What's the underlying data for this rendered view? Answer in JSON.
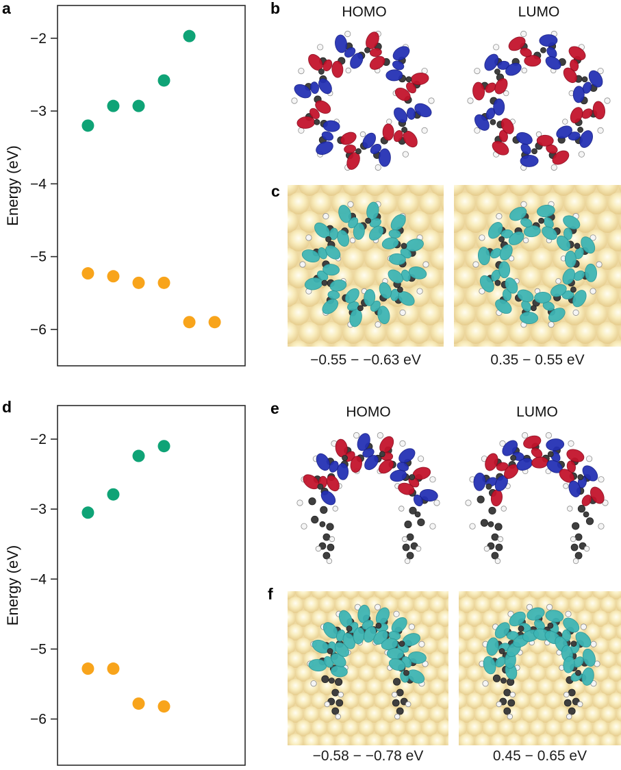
{
  "figure": {
    "panels": {
      "a": {
        "label": "a"
      },
      "b": {
        "label": "b",
        "homo_label": "HOMO",
        "lumo_label": "LUMO"
      },
      "c": {
        "label": "c",
        "homo_caption": "−0.55 − −0.63 eV",
        "lumo_caption": "0.35 − 0.55 eV"
      },
      "d": {
        "label": "d"
      },
      "e": {
        "label": "e",
        "homo_label": "HOMO",
        "lumo_label": "LUMO"
      },
      "f": {
        "label": "f",
        "homo_caption": "−0.58 − −0.78 eV",
        "lumo_caption": "0.45 − 0.65 eV"
      }
    }
  },
  "colors": {
    "point_green": "#0FA376",
    "point_orange": "#F8A41B",
    "orbital_red": "#C3132B",
    "orbital_red_stroke": "#8F0A1E",
    "orbital_blue": "#2430B4",
    "orbital_blue_stroke": "#161F8A",
    "orbital_cyan": "#3DB5B5",
    "orbital_cyan_stroke": "#2B9898",
    "gold_surface": "#EED9A2",
    "atom_carbon": "#3F3F3F",
    "atom_hydrogen": "#F5F5F5",
    "axis": "#2A2A2A",
    "text": "#111111"
  },
  "chart_data": [
    {
      "id": "a",
      "type": "scatter",
      "title": "",
      "xlabel": "",
      "ylabel": "Energy (eV)",
      "ylim": [
        -6.5,
        -1.55
      ],
      "xlim": [
        -0.2,
        7.2
      ],
      "yticks": [
        -2,
        -3,
        -4,
        -5,
        -6
      ],
      "grid": false,
      "legend": "none",
      "marker_radius": 9,
      "series": [
        {
          "name": "LUMO",
          "color_key": "point_green",
          "x": [
            1,
            2,
            3,
            4,
            5
          ],
          "y": [
            -3.2,
            -2.93,
            -2.93,
            -2.58,
            -1.97
          ]
        },
        {
          "name": "HOMO",
          "color_key": "point_orange",
          "x": [
            1,
            2,
            3,
            4,
            5,
            6
          ],
          "y": [
            -5.23,
            -5.27,
            -5.36,
            -5.36,
            -5.9,
            -5.9
          ]
        }
      ]
    },
    {
      "id": "d",
      "type": "scatter",
      "title": "",
      "xlabel": "",
      "ylabel": "Energy (eV)",
      "ylim": [
        -6.66,
        -1.52
      ],
      "xlim": [
        -0.2,
        7.2
      ],
      "yticks": [
        -2,
        -3,
        -4,
        -5,
        -6
      ],
      "grid": false,
      "legend": "none",
      "marker_radius": 9,
      "series": [
        {
          "name": "LUMO",
          "color_key": "point_green",
          "x": [
            1,
            2,
            3,
            4
          ],
          "y": [
            -3.05,
            -2.79,
            -2.24,
            -2.1
          ]
        },
        {
          "name": "HOMO",
          "color_key": "point_orange",
          "x": [
            1,
            2,
            3,
            4
          ],
          "y": [
            -5.28,
            -5.28,
            -5.78,
            -5.82
          ]
        }
      ]
    }
  ]
}
